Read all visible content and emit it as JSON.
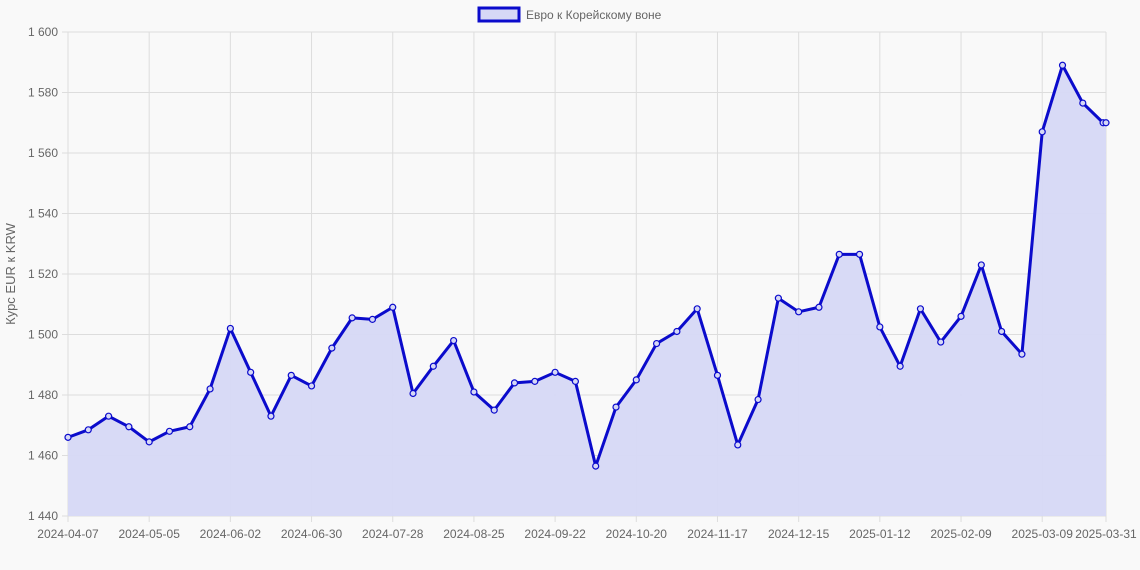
{
  "chart_data": {
    "type": "line",
    "title": "",
    "xlabel": "",
    "ylabel": "Курс EUR к KRW",
    "legend": {
      "position": "top-center",
      "label": "Евро к Корейскому воне"
    },
    "grid": true,
    "ylim": [
      1440,
      1600
    ],
    "y_ticks": [
      1440,
      1460,
      1480,
      1500,
      1520,
      1540,
      1560,
      1580,
      1600
    ],
    "y_tick_labels": [
      "1 440",
      "1 460",
      "1 480",
      "1 500",
      "1 520",
      "1 540",
      "1 560",
      "1 580",
      "1 600"
    ],
    "x_tick_labels": [
      "2024-04-07",
      "2024-05-05",
      "2024-06-02",
      "2024-06-30",
      "2024-07-28",
      "2024-08-25",
      "2024-09-22",
      "2024-10-20",
      "2024-11-17",
      "2024-12-15",
      "2025-01-12",
      "2025-02-09",
      "2025-03-09",
      "2025-03-31"
    ],
    "colors": {
      "line": "#0b0bcc",
      "fill": "#d6d8f6",
      "grid": "#dddddd"
    },
    "series": [
      {
        "name": "Евро к Корейскому воне",
        "x": [
          "2024-04-07",
          "2024-04-14",
          "2024-04-21",
          "2024-04-28",
          "2024-05-05",
          "2024-05-12",
          "2024-05-19",
          "2024-05-26",
          "2024-06-02",
          "2024-06-09",
          "2024-06-16",
          "2024-06-23",
          "2024-06-30",
          "2024-07-07",
          "2024-07-14",
          "2024-07-21",
          "2024-07-28",
          "2024-08-04",
          "2024-08-11",
          "2024-08-18",
          "2024-08-25",
          "2024-09-01",
          "2024-09-08",
          "2024-09-15",
          "2024-09-22",
          "2024-09-29",
          "2024-10-06",
          "2024-10-13",
          "2024-10-20",
          "2024-10-27",
          "2024-11-03",
          "2024-11-10",
          "2024-11-17",
          "2024-11-24",
          "2024-12-01",
          "2024-12-08",
          "2024-12-15",
          "2024-12-22",
          "2024-12-29",
          "2025-01-05",
          "2025-01-12",
          "2025-01-19",
          "2025-01-26",
          "2025-02-02",
          "2025-02-09",
          "2025-02-16",
          "2025-02-23",
          "2025-03-02",
          "2025-03-09",
          "2025-03-16",
          "2025-03-23",
          "2025-03-30",
          "2025-03-31"
        ],
        "values": [
          1466,
          1468.5,
          1473,
          1469.5,
          1464.5,
          1468,
          1469.5,
          1482,
          1502,
          1487.5,
          1473,
          1486.5,
          1483,
          1495.5,
          1505.5,
          1505,
          1509,
          1480.5,
          1489.5,
          1498,
          1481,
          1475,
          1484,
          1484.5,
          1487.5,
          1484.5,
          1456.5,
          1476,
          1485,
          1497,
          1501,
          1508.5,
          1486.5,
          1463.5,
          1478.5,
          1512,
          1507.5,
          1509,
          1526.5,
          1526.5,
          1502.5,
          1489.5,
          1508.5,
          1497.5,
          1506,
          1523,
          1501,
          1493.5,
          1567,
          1589,
          1576.5,
          1570,
          1570
        ]
      }
    ]
  }
}
